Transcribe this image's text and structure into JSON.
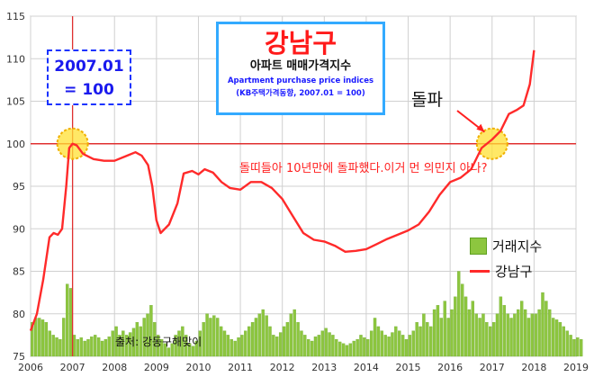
{
  "title": {
    "main": "강남구",
    "sub": "아파트 매매가격지수",
    "en": "Apartment purchase price indices",
    "note": "(KB주택가격동향, 2007.01 = 100)"
  },
  "base_label": {
    "line1": "2007.01",
    "line2": "= 100"
  },
  "breakout_label": "돌파",
  "comment": "돌띠들아 10년만에 돌파했다.이거 먼 의민지 아나?",
  "source": "출처: 강동구해맞이",
  "legend": {
    "volume": "거래지수",
    "index": "강남구"
  },
  "colors": {
    "index_line": "#ff2a2a",
    "volume_bar": "#8dc63f",
    "reference_line": "#e03030",
    "highlight": "#ffe033"
  },
  "chart_data": {
    "type": "line",
    "title": "강남구",
    "xlabel": "",
    "ylabel": "",
    "xlim": [
      2006,
      2019
    ],
    "ylim": [
      75,
      115
    ],
    "x_ticks": [
      "2006",
      "2007",
      "2008",
      "2009",
      "2010",
      "2011",
      "2012",
      "2013",
      "2014",
      "2015",
      "2016",
      "2017",
      "2018",
      "2019"
    ],
    "y_ticks": [
      "75",
      "80",
      "85",
      "90",
      "95",
      "100",
      "105",
      "110",
      "115"
    ],
    "grid": true,
    "legend_position": "right",
    "reference_lines": {
      "y": 100,
      "x": 2007.0
    },
    "series": [
      {
        "name": "강남구",
        "kind": "line",
        "points": [
          [
            2006.0,
            78
          ],
          [
            2006.15,
            80
          ],
          [
            2006.3,
            84
          ],
          [
            2006.45,
            89
          ],
          [
            2006.55,
            89.5
          ],
          [
            2006.65,
            89.3
          ],
          [
            2006.75,
            90
          ],
          [
            2006.85,
            95
          ],
          [
            2006.92,
            99.5
          ],
          [
            2007.0,
            100
          ],
          [
            2007.1,
            99.8
          ],
          [
            2007.25,
            98.8
          ],
          [
            2007.5,
            98.2
          ],
          [
            2007.75,
            98
          ],
          [
            2008.0,
            98
          ],
          [
            2008.3,
            98.6
          ],
          [
            2008.5,
            99
          ],
          [
            2008.65,
            98.6
          ],
          [
            2008.8,
            97.5
          ],
          [
            2008.9,
            95
          ],
          [
            2009.0,
            91
          ],
          [
            2009.1,
            89.5
          ],
          [
            2009.3,
            90.5
          ],
          [
            2009.5,
            93
          ],
          [
            2009.65,
            96.5
          ],
          [
            2009.85,
            96.8
          ],
          [
            2010.0,
            96.4
          ],
          [
            2010.15,
            97
          ],
          [
            2010.35,
            96.6
          ],
          [
            2010.55,
            95.5
          ],
          [
            2010.75,
            94.8
          ],
          [
            2011.0,
            94.6
          ],
          [
            2011.25,
            95.5
          ],
          [
            2011.5,
            95.5
          ],
          [
            2011.75,
            94.8
          ],
          [
            2012.0,
            93.5
          ],
          [
            2012.25,
            91.5
          ],
          [
            2012.5,
            89.5
          ],
          [
            2012.75,
            88.7
          ],
          [
            2013.0,
            88.5
          ],
          [
            2013.25,
            88
          ],
          [
            2013.5,
            87.3
          ],
          [
            2013.75,
            87.4
          ],
          [
            2014.0,
            87.6
          ],
          [
            2014.25,
            88.2
          ],
          [
            2014.5,
            88.8
          ],
          [
            2014.75,
            89.3
          ],
          [
            2015.0,
            89.8
          ],
          [
            2015.25,
            90.5
          ],
          [
            2015.5,
            92
          ],
          [
            2015.75,
            94
          ],
          [
            2016.0,
            95.5
          ],
          [
            2016.25,
            96
          ],
          [
            2016.5,
            97
          ],
          [
            2016.75,
            99.5
          ],
          [
            2017.0,
            100.5
          ],
          [
            2017.2,
            101.5
          ],
          [
            2017.4,
            103.5
          ],
          [
            2017.6,
            104
          ],
          [
            2017.75,
            104.5
          ],
          [
            2017.9,
            107
          ],
          [
            2018.0,
            111
          ]
        ]
      },
      {
        "name": "거래지수",
        "kind": "bar",
        "x_start": 2006.0,
        "step_months": 1,
        "values": [
          79,
          79.5,
          79.5,
          79.3,
          79,
          78,
          77.5,
          77.2,
          77,
          79.5,
          83.5,
          83,
          77.5,
          77,
          77.2,
          76.8,
          77,
          77.3,
          77.5,
          77.2,
          76.8,
          77,
          77.3,
          78,
          78.5,
          77.5,
          78,
          77.5,
          77.8,
          78.3,
          79,
          78.5,
          79.5,
          80,
          81,
          79,
          77.5,
          77,
          76.5,
          76,
          76.5,
          77.5,
          78,
          78.5,
          77.5,
          76.5,
          76.2,
          76.8,
          78,
          79,
          80,
          79.5,
          79.8,
          79.5,
          78.5,
          78,
          77.5,
          77,
          76.8,
          77.2,
          77.5,
          78,
          78.5,
          79,
          79.5,
          80,
          80.5,
          79.8,
          78.5,
          77.5,
          77.3,
          77.8,
          78.5,
          79,
          80,
          80.5,
          79,
          78,
          77.5,
          77,
          76.8,
          77.3,
          77.5,
          78,
          78.3,
          77.8,
          77.5,
          77,
          76.7,
          76.5,
          76.3,
          76.5,
          76.8,
          77,
          77.5,
          77.2,
          77,
          78,
          79.5,
          78.5,
          78,
          77.5,
          77.3,
          77.8,
          78.5,
          78,
          77.5,
          77,
          77.5,
          78,
          79,
          78.5,
          80,
          79,
          78.5,
          80.5,
          81,
          79.5,
          81.5,
          79.5,
          80.5,
          82,
          85,
          83.5,
          82,
          80.5,
          81.5,
          80,
          79.5,
          80,
          79,
          78.5,
          79,
          80,
          82,
          81,
          80,
          79.5,
          80,
          80.5,
          81.5,
          80.5,
          79.5,
          80,
          80,
          80.5,
          82.5,
          81.5,
          80.5,
          79.5,
          79.3,
          79,
          78.5,
          78,
          77.5,
          77,
          77.2,
          77
        ]
      }
    ]
  }
}
